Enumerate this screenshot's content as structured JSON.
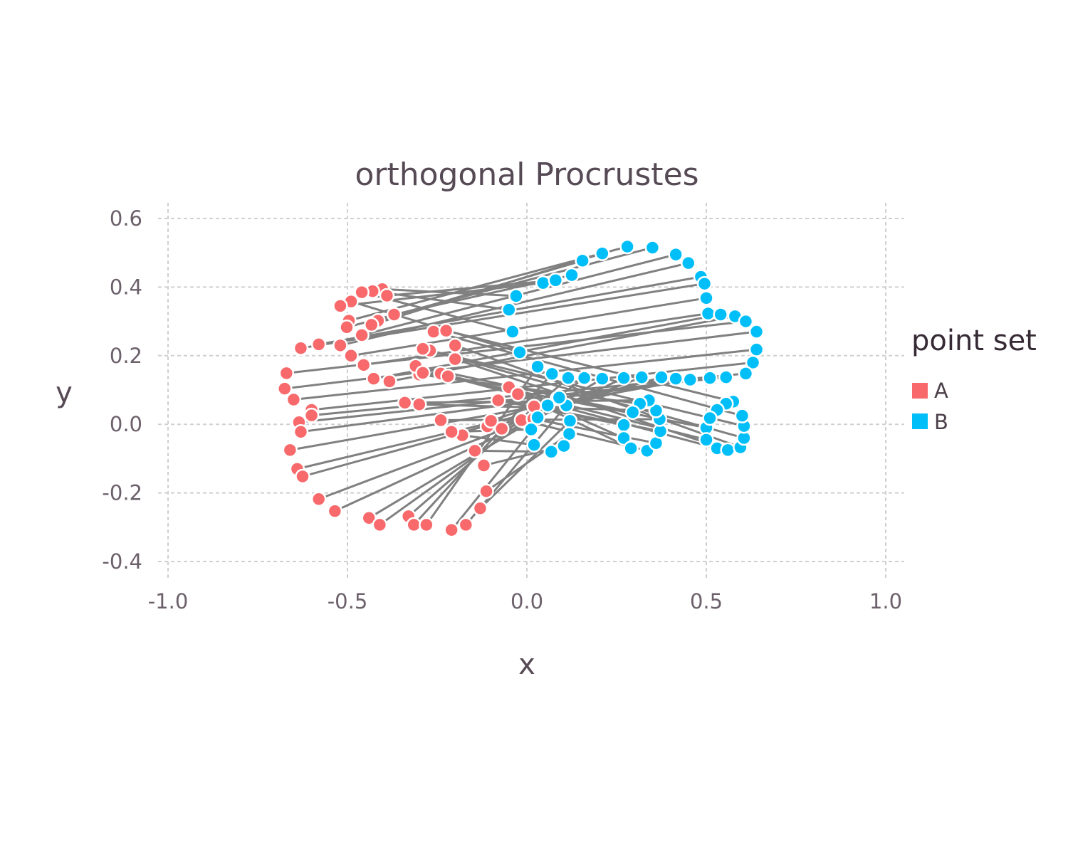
{
  "chart_data": {
    "type": "scatter",
    "title": "orthogonal Procrustes",
    "xlabel": "x",
    "ylabel": "y",
    "xlim": [
      -1.0,
      1.0
    ],
    "ylim": [
      -0.4,
      0.6
    ],
    "xticks": [
      "-1.0",
      "-0.5",
      "0.0",
      "0.5",
      "1.0"
    ],
    "yticks": [
      "-0.4",
      "-0.2",
      "0.0",
      "0.2",
      "0.4",
      "0.6"
    ],
    "grid": true,
    "legend": {
      "title": "point set",
      "placement": "right",
      "entries": [
        {
          "label": "A",
          "color": "#f8696b"
        },
        {
          "label": "B",
          "color": "#00bff8"
        }
      ]
    },
    "line_color": "#808080",
    "series": [
      {
        "name": "A",
        "color": "#f8696b",
        "points": [
          [
            -0.403,
            0.394
          ],
          [
            -0.43,
            0.388
          ],
          [
            -0.46,
            0.385
          ],
          [
            -0.49,
            0.358
          ],
          [
            -0.52,
            0.345
          ],
          [
            -0.39,
            0.375
          ],
          [
            -0.37,
            0.32
          ],
          [
            -0.415,
            0.302
          ],
          [
            -0.433,
            0.29
          ],
          [
            -0.496,
            0.302
          ],
          [
            -0.502,
            0.283
          ],
          [
            -0.46,
            0.26
          ],
          [
            -0.52,
            0.23
          ],
          [
            -0.58,
            0.233
          ],
          [
            -0.63,
            0.222
          ],
          [
            -0.49,
            0.2
          ],
          [
            -0.455,
            0.173
          ],
          [
            -0.427,
            0.133
          ],
          [
            -0.383,
            0.125
          ],
          [
            -0.67,
            0.149
          ],
          [
            -0.675,
            0.104
          ],
          [
            -0.65,
            0.072
          ],
          [
            -0.6,
            0.042
          ],
          [
            -0.6,
            0.026
          ],
          [
            -0.635,
            0.006
          ],
          [
            -0.63,
            -0.022
          ],
          [
            -0.66,
            -0.075
          ],
          [
            -0.64,
            -0.13
          ],
          [
            -0.625,
            -0.152
          ],
          [
            -0.58,
            -0.218
          ],
          [
            -0.535,
            -0.253
          ],
          [
            -0.44,
            -0.273
          ],
          [
            -0.41,
            -0.293
          ],
          [
            -0.33,
            -0.268
          ],
          [
            -0.315,
            -0.293
          ],
          [
            -0.28,
            -0.293
          ],
          [
            -0.21,
            -0.308
          ],
          [
            -0.17,
            -0.293
          ],
          [
            -0.13,
            -0.245
          ],
          [
            -0.113,
            -0.195
          ],
          [
            -0.12,
            -0.12
          ],
          [
            -0.145,
            -0.077
          ],
          [
            -0.18,
            -0.032
          ],
          [
            -0.21,
            -0.022
          ],
          [
            -0.11,
            -0.006
          ],
          [
            -0.07,
            -0.013
          ],
          [
            -0.1,
            0.01
          ],
          [
            -0.08,
            0.07
          ],
          [
            -0.05,
            0.108
          ],
          [
            -0.025,
            0.088
          ],
          [
            -0.015,
            0.012
          ],
          [
            0.018,
            0.016
          ],
          [
            0.02,
            0.052
          ],
          [
            -0.24,
            0.012
          ],
          [
            -0.3,
            0.058
          ],
          [
            -0.34,
            0.063
          ],
          [
            -0.3,
            0.145
          ],
          [
            -0.31,
            0.17
          ],
          [
            -0.29,
            0.15
          ],
          [
            -0.24,
            0.148
          ],
          [
            -0.22,
            0.14
          ],
          [
            -0.2,
            0.19
          ],
          [
            -0.2,
            0.23
          ],
          [
            -0.27,
            0.215
          ],
          [
            -0.29,
            0.22
          ],
          [
            -0.26,
            0.27
          ],
          [
            -0.225,
            0.273
          ]
        ]
      },
      {
        "name": "B",
        "color": "#00bff8",
        "points": [
          [
            -0.03,
            0.374
          ],
          [
            -0.05,
            0.334
          ],
          [
            -0.04,
            0.27
          ],
          [
            -0.02,
            0.21
          ],
          [
            0.045,
            0.412
          ],
          [
            0.08,
            0.42
          ],
          [
            0.125,
            0.435
          ],
          [
            0.155,
            0.477
          ],
          [
            0.21,
            0.498
          ],
          [
            0.28,
            0.518
          ],
          [
            0.35,
            0.515
          ],
          [
            0.415,
            0.495
          ],
          [
            0.45,
            0.47
          ],
          [
            0.485,
            0.43
          ],
          [
            0.495,
            0.41
          ],
          [
            0.5,
            0.368
          ],
          [
            0.505,
            0.323
          ],
          [
            0.54,
            0.32
          ],
          [
            0.58,
            0.315
          ],
          [
            0.61,
            0.3
          ],
          [
            0.64,
            0.27
          ],
          [
            0.64,
            0.218
          ],
          [
            0.63,
            0.18
          ],
          [
            0.61,
            0.148
          ],
          [
            0.555,
            0.137
          ],
          [
            0.51,
            0.135
          ],
          [
            0.455,
            0.13
          ],
          [
            0.415,
            0.133
          ],
          [
            0.375,
            0.137
          ],
          [
            0.32,
            0.137
          ],
          [
            0.27,
            0.135
          ],
          [
            0.21,
            0.133
          ],
          [
            0.16,
            0.135
          ],
          [
            0.115,
            0.135
          ],
          [
            0.07,
            0.147
          ],
          [
            0.03,
            0.168
          ],
          [
            0.085,
            0.075
          ],
          [
            0.11,
            0.055
          ],
          [
            0.12,
            0.01
          ],
          [
            0.118,
            -0.028
          ],
          [
            0.103,
            -0.063
          ],
          [
            0.068,
            -0.08
          ],
          [
            0.02,
            -0.06
          ],
          [
            0.012,
            -0.015
          ],
          [
            0.03,
            0.02
          ],
          [
            0.058,
            0.055
          ],
          [
            0.09,
            0.078
          ],
          [
            0.27,
            -0.002
          ],
          [
            0.27,
            -0.04
          ],
          [
            0.29,
            -0.07
          ],
          [
            0.335,
            -0.077
          ],
          [
            0.36,
            -0.055
          ],
          [
            0.372,
            -0.02
          ],
          [
            0.37,
            0.015
          ],
          [
            0.36,
            0.04
          ],
          [
            0.34,
            0.07
          ],
          [
            0.315,
            0.06
          ],
          [
            0.295,
            0.035
          ],
          [
            0.5,
            -0.01
          ],
          [
            0.5,
            -0.045
          ],
          [
            0.53,
            -0.07
          ],
          [
            0.56,
            -0.075
          ],
          [
            0.595,
            -0.067
          ],
          [
            0.605,
            -0.04
          ],
          [
            0.605,
            -0.005
          ],
          [
            0.6,
            0.025
          ],
          [
            0.575,
            0.066
          ],
          [
            0.555,
            0.06
          ],
          [
            0.53,
            0.042
          ],
          [
            0.51,
            0.018
          ]
        ]
      }
    ]
  }
}
